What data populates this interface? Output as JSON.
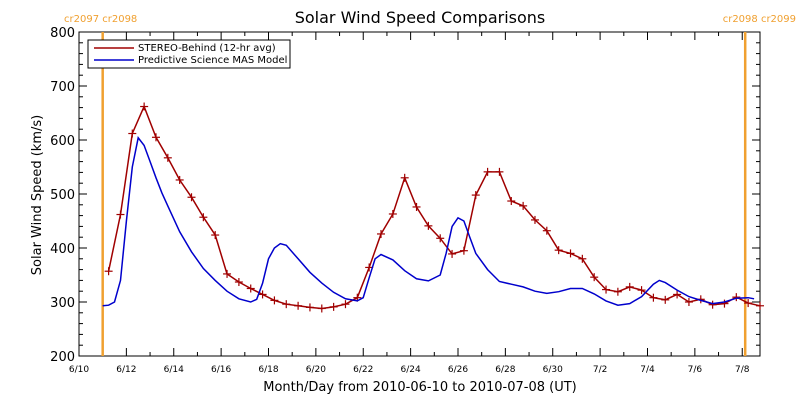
{
  "chart_data": {
    "type": "line",
    "title": "Solar Wind Speed Comparisons",
    "xlabel": "Month/Day from 2010-06-10 to 2010-07-08 (UT)",
    "ylabel": "Solar Wind Speed (km/s)",
    "xlim": [
      "2010-06-10",
      "2010-07-08"
    ],
    "ylim": [
      200,
      800
    ],
    "y_ticks": [
      200,
      300,
      400,
      500,
      600,
      700,
      800
    ],
    "x_ticks": [
      {
        "date": "2010-06-10",
        "label": "6/10"
      },
      {
        "date": "2010-06-12",
        "label": "6/12"
      },
      {
        "date": "2010-06-14",
        "label": "6/14"
      },
      {
        "date": "2010-06-16",
        "label": "6/16"
      },
      {
        "date": "2010-06-18",
        "label": "6/18"
      },
      {
        "date": "2010-06-20",
        "label": "6/20"
      },
      {
        "date": "2010-06-22",
        "label": "6/22"
      },
      {
        "date": "2010-06-24",
        "label": "6/24"
      },
      {
        "date": "2010-06-26",
        "label": "6/26"
      },
      {
        "date": "2010-06-28",
        "label": "6/28"
      },
      {
        "date": "2010-06-30",
        "label": "6/30"
      },
      {
        "date": "2010-07-02",
        "label": "7/2"
      },
      {
        "date": "2010-07-04",
        "label": "7/4"
      },
      {
        "date": "2010-07-06",
        "label": "7/6"
      },
      {
        "date": "2010-07-08",
        "label": "7/8"
      }
    ],
    "carrington_markers": [
      {
        "date": "2010-06-11T00:00",
        "label": "cr2097 cr2098",
        "side": "left"
      },
      {
        "date": "2010-07-08T03:00",
        "label": "cr2098 cr2099",
        "side": "right"
      }
    ],
    "grid": false,
    "legend_position": "top-left",
    "series": [
      {
        "name": "STEREO-Behind (12-hr avg)",
        "color": "#a00000",
        "marker": "+",
        "points": [
          [
            "2010-06-11T06:00",
            357
          ],
          [
            "2010-06-11T18:00",
            462
          ],
          [
            "2010-06-12T06:00",
            612
          ],
          [
            "2010-06-12T18:00",
            662
          ],
          [
            "2010-06-13T06:00",
            605
          ],
          [
            "2010-06-13T18:00",
            567
          ],
          [
            "2010-06-14T06:00",
            526
          ],
          [
            "2010-06-14T18:00",
            494
          ],
          [
            "2010-06-15T06:00",
            457
          ],
          [
            "2010-06-15T18:00",
            424
          ],
          [
            "2010-06-16T06:00",
            352
          ],
          [
            "2010-06-16T18:00",
            337
          ],
          [
            "2010-06-17T06:00",
            325
          ],
          [
            "2010-06-17T18:00",
            314
          ],
          [
            "2010-06-18T06:00",
            303
          ],
          [
            "2010-06-18T18:00",
            296
          ],
          [
            "2010-06-19T06:00",
            293
          ],
          [
            "2010-06-19T18:00",
            290
          ],
          [
            "2010-06-20T06:00",
            288
          ],
          [
            "2010-06-20T18:00",
            291
          ],
          [
            "2010-06-21T06:00",
            296
          ],
          [
            "2010-06-21T18:00",
            308
          ],
          [
            "2010-06-22T06:00",
            364
          ],
          [
            "2010-06-22T18:00",
            426
          ],
          [
            "2010-06-23T06:00",
            463
          ],
          [
            "2010-06-23T18:00",
            530
          ],
          [
            "2010-06-24T06:00",
            476
          ],
          [
            "2010-06-24T18:00",
            441
          ],
          [
            "2010-06-25T06:00",
            418
          ],
          [
            "2010-06-25T18:00",
            389
          ],
          [
            "2010-06-26T06:00",
            395
          ],
          [
            "2010-06-26T18:00",
            498
          ],
          [
            "2010-06-27T06:00",
            541
          ],
          [
            "2010-06-27T18:00",
            541
          ],
          [
            "2010-06-28T06:00",
            487
          ],
          [
            "2010-06-28T18:00",
            478
          ],
          [
            "2010-06-29T06:00",
            452
          ],
          [
            "2010-06-29T18:00",
            432
          ],
          [
            "2010-06-30T06:00",
            396
          ],
          [
            "2010-06-30T18:00",
            390
          ],
          [
            "2010-07-01T06:00",
            380
          ],
          [
            "2010-07-01T18:00",
            346
          ],
          [
            "2010-07-02T06:00",
            323
          ],
          [
            "2010-07-02T18:00",
            319
          ],
          [
            "2010-07-03T06:00",
            328
          ],
          [
            "2010-07-03T18:00",
            322
          ],
          [
            "2010-07-04T06:00",
            308
          ],
          [
            "2010-07-04T18:00",
            304
          ],
          [
            "2010-07-05T06:00",
            314
          ],
          [
            "2010-07-05T18:00",
            300
          ],
          [
            "2010-07-06T06:00",
            305
          ],
          [
            "2010-07-06T18:00",
            295
          ],
          [
            "2010-07-07T06:00",
            297
          ],
          [
            "2010-07-07T18:00",
            309
          ],
          [
            "2010-07-08T06:00",
            298
          ],
          [
            "2010-07-08T18:00",
            293
          ]
        ]
      },
      {
        "name": "Predictive Science MAS Model",
        "color": "#0000cc",
        "marker": "",
        "points": [
          [
            "2010-06-11T00:00",
            293
          ],
          [
            "2010-06-11T06:00",
            294
          ],
          [
            "2010-06-11T12:00",
            300
          ],
          [
            "2010-06-11T18:00",
            340
          ],
          [
            "2010-06-12T00:00",
            450
          ],
          [
            "2010-06-12T06:00",
            550
          ],
          [
            "2010-06-12T12:00",
            604
          ],
          [
            "2010-06-12T18:00",
            590
          ],
          [
            "2010-06-13T00:00",
            560
          ],
          [
            "2010-06-13T06:00",
            530
          ],
          [
            "2010-06-13T12:00",
            502
          ],
          [
            "2010-06-13T18:00",
            478
          ],
          [
            "2010-06-14T06:00",
            430
          ],
          [
            "2010-06-14T18:00",
            393
          ],
          [
            "2010-06-15T06:00",
            362
          ],
          [
            "2010-06-15T18:00",
            340
          ],
          [
            "2010-06-16T06:00",
            320
          ],
          [
            "2010-06-16T18:00",
            306
          ],
          [
            "2010-06-17T06:00",
            300
          ],
          [
            "2010-06-17T12:00",
            305
          ],
          [
            "2010-06-17T18:00",
            335
          ],
          [
            "2010-06-18T00:00",
            380
          ],
          [
            "2010-06-18T06:00",
            400
          ],
          [
            "2010-06-18T12:00",
            408
          ],
          [
            "2010-06-18T18:00",
            405
          ],
          [
            "2010-06-19T06:00",
            380
          ],
          [
            "2010-06-19T18:00",
            355
          ],
          [
            "2010-06-20T06:00",
            335
          ],
          [
            "2010-06-20T18:00",
            318
          ],
          [
            "2010-06-21T06:00",
            306
          ],
          [
            "2010-06-21T18:00",
            302
          ],
          [
            "2010-06-22T00:00",
            308
          ],
          [
            "2010-06-22T06:00",
            345
          ],
          [
            "2010-06-22T12:00",
            380
          ],
          [
            "2010-06-22T18:00",
            388
          ],
          [
            "2010-06-23T06:00",
            378
          ],
          [
            "2010-06-23T18:00",
            358
          ],
          [
            "2010-06-24T06:00",
            343
          ],
          [
            "2010-06-24T18:00",
            339
          ],
          [
            "2010-06-25T06:00",
            350
          ],
          [
            "2010-06-25T12:00",
            390
          ],
          [
            "2010-06-25T18:00",
            440
          ],
          [
            "2010-06-26T00:00",
            456
          ],
          [
            "2010-06-26T06:00",
            450
          ],
          [
            "2010-06-26T12:00",
            420
          ],
          [
            "2010-06-26T18:00",
            390
          ],
          [
            "2010-06-27T06:00",
            360
          ],
          [
            "2010-06-27T18:00",
            338
          ],
          [
            "2010-06-28T06:00",
            333
          ],
          [
            "2010-06-28T18:00",
            328
          ],
          [
            "2010-06-29T06:00",
            320
          ],
          [
            "2010-06-29T18:00",
            316
          ],
          [
            "2010-06-30T06:00",
            319
          ],
          [
            "2010-06-30T18:00",
            325
          ],
          [
            "2010-07-01T06:00",
            325
          ],
          [
            "2010-07-01T18:00",
            315
          ],
          [
            "2010-07-02T06:00",
            302
          ],
          [
            "2010-07-02T18:00",
            294
          ],
          [
            "2010-07-03T06:00",
            297
          ],
          [
            "2010-07-03T18:00",
            310
          ],
          [
            "2010-07-04T06:00",
            333
          ],
          [
            "2010-07-04T12:00",
            340
          ],
          [
            "2010-07-04T18:00",
            336
          ],
          [
            "2010-07-05T06:00",
            322
          ],
          [
            "2010-07-05T18:00",
            310
          ],
          [
            "2010-07-06T06:00",
            303
          ],
          [
            "2010-07-06T18:00",
            297
          ],
          [
            "2010-07-07T06:00",
            300
          ],
          [
            "2010-07-07T18:00",
            307
          ],
          [
            "2010-07-08T06:00",
            308
          ],
          [
            "2010-07-08T12:00",
            306
          ]
        ]
      }
    ]
  }
}
